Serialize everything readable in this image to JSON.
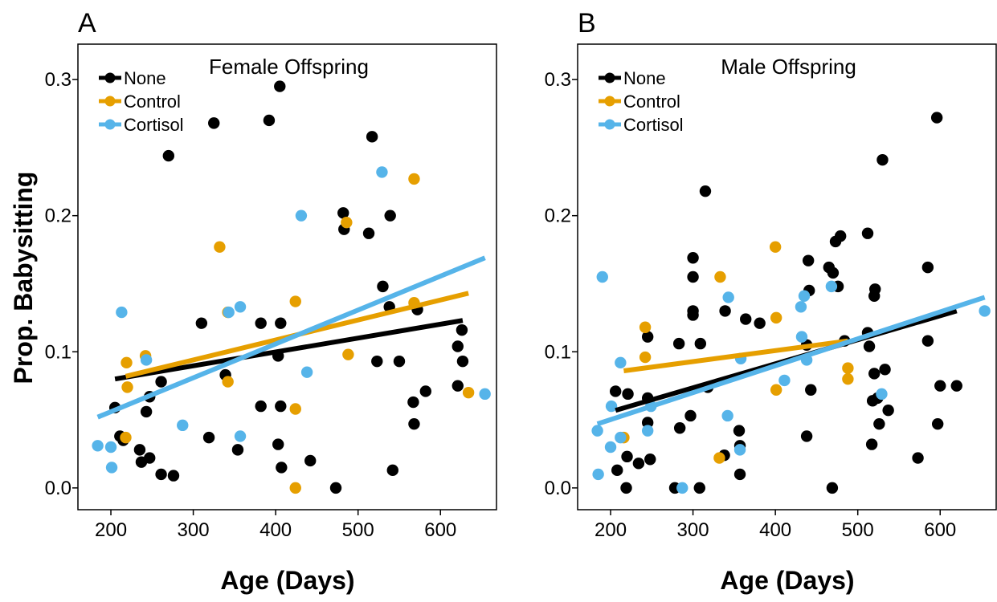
{
  "figure": {
    "ylabel": "Prop. Babysitting",
    "xlabel": "Age (Days)"
  },
  "legend": {
    "position": "top-left",
    "entries": [
      {
        "name": "None",
        "color": "#000000"
      },
      {
        "name": "Control",
        "color": "#E69F00"
      },
      {
        "name": "Cortisol",
        "color": "#56B4E9"
      }
    ]
  },
  "chart_data": [
    {
      "type": "scatter",
      "panel": "A",
      "title": "Female Offspring",
      "xlabel": "Age (Days)",
      "ylabel": "Prop. Babysitting",
      "xlim": [
        160,
        668
      ],
      "ylim": [
        -0.016,
        0.326
      ],
      "xticks": [
        200,
        300,
        400,
        500,
        600
      ],
      "yticks": [
        0.0,
        0.1,
        0.2,
        0.3
      ],
      "ytick_labels": [
        "0.0",
        "0.1",
        "0.2",
        "0.3"
      ],
      "grid": false,
      "series": [
        {
          "name": "None",
          "color": "#000000",
          "points": [
            [
              205,
              0.059
            ],
            [
              211,
              0.038
            ],
            [
              215,
              0.035
            ],
            [
              235,
              0.028
            ],
            [
              237,
              0.019
            ],
            [
              243,
              0.056
            ],
            [
              247,
              0.067
            ],
            [
              247,
              0.022
            ],
            [
              261,
              0.078
            ],
            [
              261,
              0.01
            ],
            [
              270,
              0.244
            ],
            [
              276,
              0.009
            ],
            [
              310,
              0.121
            ],
            [
              319,
              0.037
            ],
            [
              325,
              0.268
            ],
            [
              339,
              0.083
            ],
            [
              354,
              0.028
            ],
            [
              382,
              0.121
            ],
            [
              382,
              0.06
            ],
            [
              392,
              0.27
            ],
            [
              403,
              0.097
            ],
            [
              403,
              0.032
            ],
            [
              405,
              0.295
            ],
            [
              406,
              0.121
            ],
            [
              406,
              0.06
            ],
            [
              407,
              0.015
            ],
            [
              442,
              0.02
            ],
            [
              473,
              0.0
            ],
            [
              482,
              0.202
            ],
            [
              483,
              0.19
            ],
            [
              513,
              0.187
            ],
            [
              517,
              0.258
            ],
            [
              523,
              0.093
            ],
            [
              530,
              0.148
            ],
            [
              538,
              0.133
            ],
            [
              539,
              0.2
            ],
            [
              542,
              0.013
            ],
            [
              550,
              0.093
            ],
            [
              567,
              0.063
            ],
            [
              568,
              0.047
            ],
            [
              572,
              0.131
            ],
            [
              582,
              0.071
            ],
            [
              621,
              0.104
            ],
            [
              621,
              0.075
            ],
            [
              626,
              0.116
            ],
            [
              627,
              0.093
            ]
          ]
        },
        {
          "name": "Control",
          "color": "#E69F00",
          "points": [
            [
              218,
              0.037
            ],
            [
              219,
              0.092
            ],
            [
              220,
              0.074
            ],
            [
              242,
              0.097
            ],
            [
              332,
              0.177
            ],
            [
              342,
              0.129
            ],
            [
              342,
              0.078
            ],
            [
              424,
              0.137
            ],
            [
              424,
              0.058
            ],
            [
              424,
              0.0
            ],
            [
              486,
              0.195
            ],
            [
              488,
              0.098
            ],
            [
              568,
              0.227
            ],
            [
              568,
              0.136
            ],
            [
              634,
              0.07
            ]
          ]
        },
        {
          "name": "Cortisol",
          "color": "#56B4E9",
          "points": [
            [
              184,
              0.031
            ],
            [
              200,
              0.03
            ],
            [
              201,
              0.015
            ],
            [
              213,
              0.129
            ],
            [
              243,
              0.094
            ],
            [
              287,
              0.046
            ],
            [
              343,
              0.129
            ],
            [
              357,
              0.133
            ],
            [
              357,
              0.038
            ],
            [
              431,
              0.2
            ],
            [
              438,
              0.085
            ],
            [
              529,
              0.232
            ],
            [
              654,
              0.069
            ]
          ]
        }
      ],
      "fits": [
        {
          "name": "None",
          "color": "#000000",
          "x": [
            205,
            627
          ],
          "y": [
            0.08,
            0.123
          ]
        },
        {
          "name": "Control",
          "color": "#E69F00",
          "x": [
            218,
            634
          ],
          "y": [
            0.082,
            0.143
          ]
        },
        {
          "name": "Cortisol",
          "color": "#56B4E9",
          "x": [
            184,
            654
          ],
          "y": [
            0.052,
            0.169
          ]
        }
      ]
    },
    {
      "type": "scatter",
      "panel": "B",
      "title": "Male Offspring",
      "xlabel": "Age (Days)",
      "ylabel": "",
      "xlim": [
        160,
        668
      ],
      "ylim": [
        -0.016,
        0.326
      ],
      "xticks": [
        200,
        300,
        400,
        500,
        600
      ],
      "yticks": [
        0.0,
        0.1,
        0.2,
        0.3
      ],
      "ytick_labels": [
        "0.0",
        "0.1",
        "0.2",
        "0.3"
      ],
      "grid": false,
      "series": [
        {
          "name": "None",
          "color": "#000000",
          "points": [
            [
              206,
              0.071
            ],
            [
              208,
              0.013
            ],
            [
              219,
              0.0
            ],
            [
              220,
              0.023
            ],
            [
              221,
              0.069
            ],
            [
              234,
              0.018
            ],
            [
              245,
              0.111
            ],
            [
              245,
              0.066
            ],
            [
              245,
              0.048
            ],
            [
              248,
              0.021
            ],
            [
              278,
              0.0
            ],
            [
              283,
              0.106
            ],
            [
              284,
              0.044
            ],
            [
              297,
              0.053
            ],
            [
              300,
              0.169
            ],
            [
              300,
              0.155
            ],
            [
              300,
              0.13
            ],
            [
              300,
              0.127
            ],
            [
              308,
              0.0
            ],
            [
              309,
              0.106
            ],
            [
              315,
              0.218
            ],
            [
              318,
              0.074
            ],
            [
              338,
              0.024
            ],
            [
              339,
              0.13
            ],
            [
              356,
              0.042
            ],
            [
              357,
              0.031
            ],
            [
              357,
              0.01
            ],
            [
              364,
              0.124
            ],
            [
              381,
              0.121
            ],
            [
              438,
              0.105
            ],
            [
              438,
              0.038
            ],
            [
              440,
              0.167
            ],
            [
              441,
              0.145
            ],
            [
              443,
              0.072
            ],
            [
              465,
              0.162
            ],
            [
              469,
              0.0
            ],
            [
              470,
              0.158
            ],
            [
              473,
              0.181
            ],
            [
              476,
              0.148
            ],
            [
              479,
              0.185
            ],
            [
              484,
              0.108
            ],
            [
              512,
              0.114
            ],
            [
              512,
              0.187
            ],
            [
              514,
              0.104
            ],
            [
              517,
              0.032
            ],
            [
              518,
              0.064
            ],
            [
              520,
              0.084
            ],
            [
              520,
              0.141
            ],
            [
              521,
              0.146
            ],
            [
              524,
              0.066
            ],
            [
              526,
              0.047
            ],
            [
              530,
              0.241
            ],
            [
              533,
              0.087
            ],
            [
              537,
              0.057
            ],
            [
              573,
              0.022
            ],
            [
              585,
              0.162
            ],
            [
              585,
              0.108
            ],
            [
              596,
              0.272
            ],
            [
              597,
              0.047
            ],
            [
              600,
              0.075
            ],
            [
              620,
              0.075
            ]
          ]
        },
        {
          "name": "Control",
          "color": "#E69F00",
          "points": [
            [
              216,
              0.037
            ],
            [
              242,
              0.118
            ],
            [
              242,
              0.096
            ],
            [
              332,
              0.022
            ],
            [
              333,
              0.155
            ],
            [
              400,
              0.177
            ],
            [
              401,
              0.125
            ],
            [
              401,
              0.072
            ],
            [
              488,
              0.088
            ],
            [
              488,
              0.08
            ]
          ]
        },
        {
          "name": "Cortisol",
          "color": "#56B4E9",
          "points": [
            [
              184,
              0.042
            ],
            [
              185,
              0.01
            ],
            [
              190,
              0.155
            ],
            [
              200,
              0.03
            ],
            [
              201,
              0.06
            ],
            [
              212,
              0.092
            ],
            [
              212,
              0.037
            ],
            [
              245,
              0.042
            ],
            [
              249,
              0.06
            ],
            [
              287,
              0.0
            ],
            [
              342,
              0.053
            ],
            [
              343,
              0.14
            ],
            [
              357,
              0.028
            ],
            [
              358,
              0.095
            ],
            [
              411,
              0.079
            ],
            [
              431,
              0.133
            ],
            [
              432,
              0.111
            ],
            [
              435,
              0.141
            ],
            [
              438,
              0.094
            ],
            [
              468,
              0.148
            ],
            [
              529,
              0.069
            ],
            [
              654,
              0.13
            ]
          ]
        }
      ],
      "fits": [
        {
          "name": "None",
          "color": "#000000",
          "x": [
            206,
            620
          ],
          "y": [
            0.057,
            0.13
          ]
        },
        {
          "name": "Control",
          "color": "#E69F00",
          "x": [
            216,
            488
          ],
          "y": [
            0.086,
            0.108
          ]
        },
        {
          "name": "Cortisol",
          "color": "#56B4E9",
          "x": [
            184,
            654
          ],
          "y": [
            0.047,
            0.14
          ]
        }
      ]
    }
  ]
}
